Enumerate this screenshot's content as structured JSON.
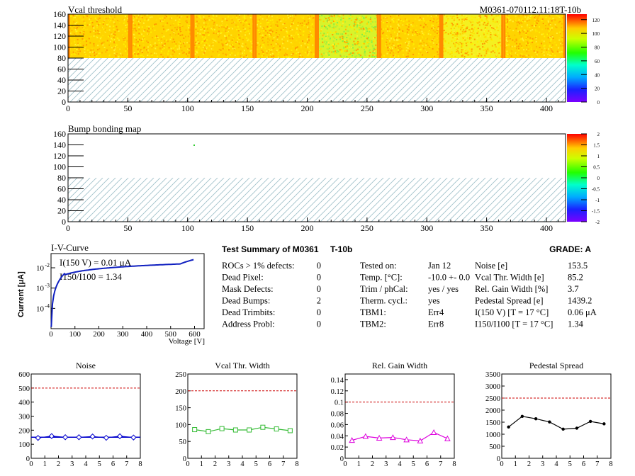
{
  "panels": {
    "vcal": {
      "title": "Vcal threshold",
      "module_label": "M0361-070112.11:18T-10b",
      "x_ticks": [
        "0",
        "50",
        "100",
        "150",
        "200",
        "250",
        "300",
        "350",
        "400"
      ],
      "y_ticks": [
        "0",
        "20",
        "40",
        "60",
        "80",
        "100",
        "120",
        "140",
        "160"
      ],
      "palette_ticks": [
        "0",
        "20",
        "40",
        "60",
        "80",
        "100",
        "120"
      ]
    },
    "bump": {
      "title": "Bump bonding map",
      "x_ticks": [
        "0",
        "50",
        "100",
        "150",
        "200",
        "250",
        "300",
        "350",
        "400"
      ],
      "y_ticks": [
        "0",
        "20",
        "40",
        "60",
        "80",
        "100",
        "120",
        "140",
        "160"
      ],
      "palette_ticks": [
        "-2",
        "-1.5",
        "-1",
        "-0.5",
        "0",
        "0.5",
        "1",
        "1.5",
        "2"
      ]
    }
  },
  "ivcurve": {
    "title": "I-V-Curve",
    "ylabel": "Current [μA]",
    "xlabel": "Voltage [V]",
    "x_ticks": [
      "0",
      "100",
      "200",
      "300",
      "400",
      "500",
      "600"
    ],
    "anno1": "I(150 V) = 0.01 μA",
    "anno2": "I150/I100 =  1.34"
  },
  "summary": {
    "title": "Test Summary of M0361",
    "tag": "T-10b",
    "grade": "GRADE:  A",
    "left": [
      {
        "label": "ROCs > 1% defects:",
        "value": "0"
      },
      {
        "label": "Dead Pixel:",
        "value": "0"
      },
      {
        "label": "Mask Defects:",
        "value": "0"
      },
      {
        "label": "Dead Bumps:",
        "value": "2"
      },
      {
        "label": "Dead Trimbits:",
        "value": "0"
      },
      {
        "label": "Address Probl:",
        "value": "0"
      }
    ],
    "mid": [
      {
        "label": "Tested on:",
        "value": "Jan 12"
      },
      {
        "label": "Temp. [°C]:",
        "value": "-10.0 +- 0.0"
      },
      {
        "label": "Trim / phCal:",
        "value": "yes / yes"
      },
      {
        "label": "Therm. cycl.:",
        "value": "yes"
      },
      {
        "label": "TBM1:",
        "value": "Err4"
      },
      {
        "label": "TBM2:",
        "value": "Err8"
      }
    ],
    "right": [
      {
        "label": "Noise [e]",
        "value": "153.5"
      },
      {
        "label": "Vcal Thr. Width [e]",
        "value": "85.2"
      },
      {
        "label": "Rel. Gain Width [%]",
        "value": "3.7"
      },
      {
        "label": "Pedestal Spread [e]",
        "value": "1439.2"
      },
      {
        "label": "I(150 V) [T = 17 °C]",
        "value": "0.06 μA"
      },
      {
        "label": "I150/I100  [T = 17 °C]",
        "value": "1.34"
      }
    ]
  },
  "chart_data": [
    {
      "type": "line",
      "title": "Noise",
      "x": [
        0.5,
        1.5,
        2.5,
        3.5,
        4.5,
        5.5,
        6.5,
        7.5
      ],
      "values": [
        145,
        158,
        150,
        150,
        155,
        146,
        157,
        148
      ],
      "threshold": 500,
      "xlim": [
        0,
        8
      ],
      "ylim": [
        0,
        600
      ],
      "x_ticks": [
        0,
        1,
        2,
        3,
        4,
        5,
        6,
        7,
        8
      ],
      "y_ticks": [
        0,
        100,
        200,
        300,
        400,
        500,
        600
      ],
      "color": "#0000cc",
      "marker": "diamond",
      "mean_line": 150
    },
    {
      "type": "line",
      "title": "Vcal Thr. Width",
      "x": [
        0.5,
        1.5,
        2.5,
        3.5,
        4.5,
        5.5,
        6.5,
        7.5
      ],
      "values": [
        85,
        79,
        88,
        84,
        84,
        92,
        87,
        82
      ],
      "threshold": 200,
      "xlim": [
        0,
        8
      ],
      "ylim": [
        0,
        250
      ],
      "x_ticks": [
        0,
        1,
        2,
        3,
        4,
        5,
        6,
        7,
        8
      ],
      "y_ticks": [
        0,
        50,
        100,
        150,
        200,
        250
      ],
      "color": "#33bb33",
      "marker": "square"
    },
    {
      "type": "line",
      "title": "Rel. Gain Width",
      "x": [
        0.5,
        1.5,
        2.5,
        3.5,
        4.5,
        5.5,
        6.5,
        7.5
      ],
      "values": [
        0.032,
        0.039,
        0.036,
        0.037,
        0.033,
        0.031,
        0.046,
        0.035
      ],
      "threshold": 0.1,
      "xlim": [
        0,
        8
      ],
      "ylim": [
        0,
        0.15
      ],
      "x_ticks": [
        0,
        1,
        2,
        3,
        4,
        5,
        6,
        7,
        8
      ],
      "y_ticks": [
        0,
        0.02,
        0.04,
        0.06,
        0.08,
        0.1,
        0.12,
        0.14
      ],
      "color": "#dd00dd",
      "marker": "triangle"
    },
    {
      "type": "line",
      "title": "Pedestal Spread",
      "x": [
        0.5,
        1.5,
        2.5,
        3.5,
        4.5,
        5.5,
        6.5,
        7.5
      ],
      "values": [
        1300,
        1740,
        1640,
        1510,
        1210,
        1250,
        1530,
        1430
      ],
      "threshold": 2500,
      "xlim": [
        0,
        8
      ],
      "ylim": [
        0,
        3500
      ],
      "x_ticks": [
        0,
        1,
        2,
        3,
        4,
        5,
        6,
        7,
        8
      ],
      "y_ticks": [
        0,
        500,
        1000,
        1500,
        2000,
        2500,
        3000,
        3500
      ],
      "color": "#000000",
      "marker": "circle"
    }
  ]
}
